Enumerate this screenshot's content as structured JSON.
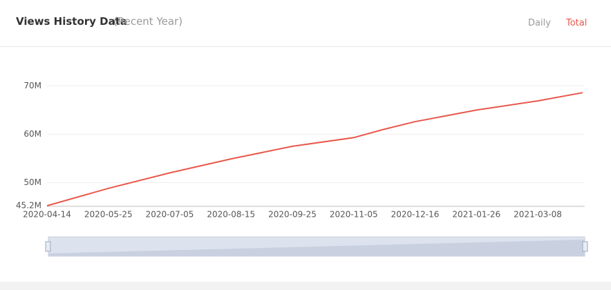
{
  "header": {
    "title": "Views History Data",
    "subtitle": "(Recent Year)",
    "tabs": [
      "Daily",
      "Total"
    ]
  },
  "chart_data": {
    "type": "line",
    "x": [
      "2020-04-14",
      "2020-05-25",
      "2020-07-05",
      "2020-08-15",
      "2020-09-25",
      "2020-11-05",
      "2020-11-25",
      "2020-12-16",
      "2021-01-26",
      "2021-03-08",
      "2021-04-07"
    ],
    "series": [
      {
        "name": "Total",
        "color": "#e8574a",
        "values": [
          45200000,
          48800000,
          52000000,
          54900000,
          57500000,
          59300000,
          61000000,
          62600000,
          65000000,
          66900000,
          68600000
        ]
      }
    ],
    "xlim": [
      "2020-04-14",
      "2021-04-07"
    ],
    "xticks": [
      "2020-04-14",
      "2020-05-25",
      "2020-07-05",
      "2020-08-15",
      "2020-09-25",
      "2020-11-05",
      "2020-12-16",
      "2021-01-26",
      "2021-03-08"
    ],
    "ylim": [
      45200000,
      72000000
    ],
    "yticks": [
      {
        "value": 45200000,
        "label": "45.2M"
      },
      {
        "value": 50000000,
        "label": "50M"
      },
      {
        "value": 60000000,
        "label": "60M"
      },
      {
        "value": 70000000,
        "label": "70M"
      }
    ],
    "grid": true
  }
}
